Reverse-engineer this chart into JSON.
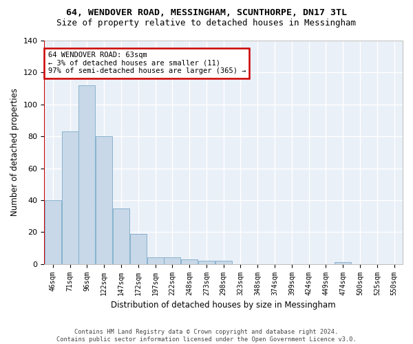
{
  "title1": "64, WENDOVER ROAD, MESSINGHAM, SCUNTHORPE, DN17 3TL",
  "title2": "Size of property relative to detached houses in Messingham",
  "xlabel": "Distribution of detached houses by size in Messingham",
  "ylabel": "Number of detached properties",
  "bin_labels": [
    "46sqm",
    "71sqm",
    "96sqm",
    "122sqm",
    "147sqm",
    "172sqm",
    "197sqm",
    "222sqm",
    "248sqm",
    "273sqm",
    "298sqm",
    "323sqm",
    "348sqm",
    "374sqm",
    "399sqm",
    "424sqm",
    "449sqm",
    "474sqm",
    "500sqm",
    "525sqm",
    "550sqm"
  ],
  "bar_heights": [
    40,
    83,
    112,
    80,
    35,
    19,
    4,
    4,
    3,
    2,
    2,
    0,
    0,
    0,
    0,
    0,
    0,
    1,
    0,
    0,
    0
  ],
  "bar_color": "#c8d8e8",
  "bar_edgecolor": "#7aaac8",
  "background_color": "#eaf0f8",
  "grid_color": "#ffffff",
  "fig_bg_color": "#ffffff",
  "property_line_color": "#cc0000",
  "annotation_text": "64 WENDOVER ROAD: 63sqm\n← 3% of detached houses are smaller (11)\n97% of semi-detached houses are larger (365) →",
  "annotation_box_facecolor": "#ffffff",
  "annotation_box_edgecolor": "#cc0000",
  "ylim": [
    0,
    140
  ],
  "yticks": [
    0,
    20,
    40,
    60,
    80,
    100,
    120,
    140
  ],
  "title1_fontsize": 9.5,
  "title2_fontsize": 9,
  "footnote": "Contains HM Land Registry data © Crown copyright and database right 2024.\nContains public sector information licensed under the Open Government Licence v3.0."
}
